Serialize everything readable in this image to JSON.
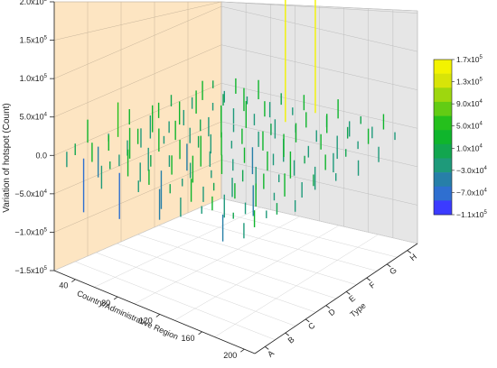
{
  "chart_data": {
    "type": "3d-bar",
    "title": "",
    "zlabel": "Variation of hotspot (Count)",
    "xlabel": "Country/Administrative Region",
    "ylabel": "Type",
    "zlim": [
      -150000,
      200000
    ],
    "z_ticks": [
      {
        "value": -150000,
        "label": "−1.5x10",
        "exp": "5"
      },
      {
        "value": -100000,
        "label": "−1.0x10",
        "exp": "5"
      },
      {
        "value": -50000,
        "label": "−5.0x10",
        "exp": "4"
      },
      {
        "value": 0,
        "label": "0.0",
        "exp": ""
      },
      {
        "value": 50000,
        "label": "5.0x10",
        "exp": "4"
      },
      {
        "value": 100000,
        "label": "1.0x10",
        "exp": "5"
      },
      {
        "value": 150000,
        "label": "1.5x10",
        "exp": "5"
      },
      {
        "value": 200000,
        "label": "2.0x10",
        "exp": "5"
      }
    ],
    "x_ticks": [
      "40",
      "80",
      "120",
      "160",
      "200"
    ],
    "x_range": [
      20,
      210
    ],
    "y_ticks": [
      "A",
      "B",
      "C",
      "D",
      "E",
      "F",
      "G",
      "H"
    ],
    "grid": true,
    "colorbar": {
      "position": "right",
      "colors": [
        "#3b3bff",
        "#2f6fd0",
        "#277fa8",
        "#1e9a7a",
        "#12a64f",
        "#0fb52c",
        "#25c01c",
        "#63cc14",
        "#9ed70e",
        "#d8e408",
        "#f3f300"
      ],
      "ticks": [
        {
          "label": "1.7x10",
          "exp": "5"
        },
        {
          "label": "1.3x10",
          "exp": "5"
        },
        {
          "label": "9.0x10",
          "exp": "4"
        },
        {
          "label": "5.0x10",
          "exp": "4"
        },
        {
          "label": "1.0x10",
          "exp": "4"
        },
        {
          "label": "−3.0x10",
          "exp": "4"
        },
        {
          "label": "−7.0x10",
          "exp": "4"
        },
        {
          "label": "−1.1x10",
          "exp": "5"
        }
      ],
      "range": [
        -110000,
        170000
      ]
    },
    "series": [
      {
        "type": "A",
        "points": [
          [
            22,
            -20000
          ],
          [
            30,
            15000
          ],
          [
            38,
            -70000
          ],
          [
            46,
            25000
          ],
          [
            55,
            -30000
          ],
          [
            63,
            10000
          ],
          [
            72,
            -60000
          ],
          [
            80,
            35000
          ],
          [
            90,
            -15000
          ],
          [
            100,
            20000
          ],
          [
            110,
            -40000
          ],
          [
            120,
            12000
          ],
          [
            130,
            -25000
          ],
          [
            140,
            30000
          ],
          [
            150,
            -10000
          ],
          [
            160,
            18000
          ],
          [
            170,
            -35000
          ],
          [
            180,
            8000
          ],
          [
            190,
            -20000
          ],
          [
            200,
            22000
          ]
        ]
      },
      {
        "type": "B",
        "points": [
          [
            22,
            30000
          ],
          [
            32,
            -40000
          ],
          [
            42,
            20000
          ],
          [
            52,
            -15000
          ],
          [
            62,
            40000
          ],
          [
            72,
            -25000
          ],
          [
            82,
            15000
          ],
          [
            92,
            -50000
          ],
          [
            102,
            25000
          ],
          [
            112,
            -10000
          ],
          [
            122,
            35000
          ],
          [
            132,
            -20000
          ],
          [
            142,
            10000
          ],
          [
            152,
            -30000
          ],
          [
            162,
            20000
          ],
          [
            172,
            -15000
          ],
          [
            182,
            30000
          ],
          [
            192,
            -10000
          ],
          [
            202,
            15000
          ]
        ]
      },
      {
        "type": "C",
        "points": [
          [
            22,
            -10000
          ],
          [
            31,
            45000
          ],
          [
            40,
            -20000
          ],
          [
            50,
            20000
          ],
          [
            60,
            -30000
          ],
          [
            70,
            30000
          ],
          [
            80,
            -15000
          ],
          [
            90,
            25000
          ],
          [
            100,
            -20000
          ],
          [
            110,
            40000
          ],
          [
            120,
            -10000
          ],
          [
            130,
            25000
          ],
          [
            140,
            -25000
          ],
          [
            150,
            15000
          ],
          [
            160,
            -40000
          ],
          [
            170,
            20000
          ],
          [
            180,
            -10000
          ],
          [
            190,
            30000
          ],
          [
            200,
            -15000
          ]
        ]
      },
      {
        "type": "D",
        "points": [
          [
            22,
            20000
          ],
          [
            33,
            -25000
          ],
          [
            44,
            35000
          ],
          [
            55,
            -10000
          ],
          [
            66,
            25000
          ],
          [
            77,
            -35000
          ],
          [
            88,
            15000
          ],
          [
            99,
            -20000
          ],
          [
            110,
            30000
          ],
          [
            121,
            -15000
          ],
          [
            132,
            20000
          ],
          [
            143,
            -30000
          ],
          [
            154,
            25000
          ],
          [
            165,
            -10000
          ],
          [
            176,
            35000
          ],
          [
            187,
            -20000
          ],
          [
            198,
            15000
          ]
        ]
      },
      {
        "type": "E",
        "points": [
          [
            22,
            -30000
          ],
          [
            30,
            20000
          ],
          [
            40,
            -15000
          ],
          [
            50,
            30000
          ],
          [
            60,
            -20000
          ],
          [
            70,
            15000
          ],
          [
            80,
            -25000
          ],
          [
            90,
            40000
          ],
          [
            100,
            -10000
          ],
          [
            110,
            20000
          ],
          [
            120,
            -35000
          ],
          [
            130,
            25000
          ],
          [
            140,
            -15000
          ],
          [
            150,
            30000
          ],
          [
            160,
            -20000
          ],
          [
            170,
            10000
          ],
          [
            180,
            -30000
          ],
          [
            190,
            20000
          ],
          [
            200,
            -10000
          ]
        ]
      },
      {
        "type": "F",
        "points": [
          [
            22,
            15000
          ],
          [
            34,
            -20000
          ],
          [
            46,
            30000
          ],
          [
            58,
            -25000
          ],
          [
            70,
            20000
          ],
          [
            82,
            -10000
          ],
          [
            94,
            35000
          ],
          [
            106,
            -20000
          ],
          [
            118,
            15000
          ],
          [
            130,
            -30000
          ],
          [
            142,
            25000
          ],
          [
            154,
            -15000
          ],
          [
            166,
            20000
          ],
          [
            178,
            -25000
          ],
          [
            190,
            10000
          ],
          [
            202,
            -20000
          ]
        ]
      },
      {
        "type": "G",
        "points": [
          [
            22,
            -15000
          ],
          [
            32,
            25000
          ],
          [
            42,
            -10000
          ],
          [
            52,
            15000
          ],
          [
            62,
            -20000
          ],
          [
            72,
            30000
          ],
          [
            82,
            -15000
          ],
          [
            92,
            20000
          ],
          [
            102,
            -25000
          ],
          [
            112,
            170000
          ],
          [
            122,
            -10000
          ],
          [
            132,
            20000
          ],
          [
            142,
            -15000
          ],
          [
            152,
            25000
          ],
          [
            162,
            -30000
          ],
          [
            172,
            15000
          ],
          [
            182,
            -10000
          ],
          [
            192,
            20000
          ],
          [
            202,
            -20000
          ]
        ]
      },
      {
        "type": "H",
        "points": [
          [
            22,
            10000
          ],
          [
            33,
            -15000
          ],
          [
            44,
            20000
          ],
          [
            55,
            -10000
          ],
          [
            66,
            25000
          ],
          [
            77,
            -20000
          ],
          [
            88,
            15000
          ],
          [
            99,
            -10000
          ],
          [
            110,
            20000
          ],
          [
            121,
            150000
          ],
          [
            132,
            -15000
          ],
          [
            143,
            25000
          ],
          [
            154,
            -20000
          ],
          [
            165,
            10000
          ],
          [
            176,
            -15000
          ],
          [
            187,
            20000
          ],
          [
            198,
            -10000
          ]
        ]
      }
    ]
  }
}
